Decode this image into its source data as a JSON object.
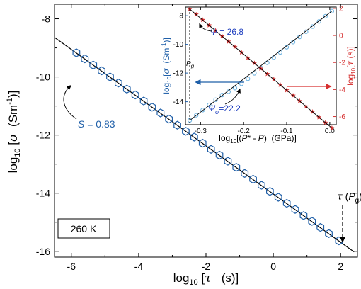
{
  "chart_data": [
    {
      "type": "scatter",
      "xlabel_pre": "log",
      "xlabel_sub": "10",
      "xlabel_post": " [",
      "xlabel_var": "τ",
      "xlabel_unit": "   (s)]",
      "ylabel_pre": "log",
      "ylabel_sub": "10",
      "ylabel_post": " [",
      "ylabel_var": "σ",
      "ylabel_unit": "  (Sm",
      "ylabel_sup": "-1",
      "ylabel_end": ")]",
      "xlim": [
        -6.5,
        2.5
      ],
      "ylim": [
        -16.2,
        -7.5
      ],
      "xticks": [
        "-6",
        "-4",
        "-2",
        "0",
        "2"
      ],
      "xtick_values": [
        -6,
        -4,
        -2,
        0,
        2
      ],
      "yticks": [
        "-8",
        "-10",
        "-12",
        "-14",
        "-16"
      ],
      "ytick_values": [
        -8,
        -10,
        -12,
        -14,
        -16
      ],
      "series": [
        {
          "marker": "hexagon-open",
          "color": "#1f5fa8",
          "x": [
            -5.85,
            -5.6,
            -5.35,
            -5.1,
            -4.85,
            -4.6,
            -4.35,
            -4.1,
            -3.85,
            -3.6,
            -3.35,
            -3.1,
            -2.85,
            -2.6,
            -2.35,
            -2.1,
            -1.85,
            -1.6,
            -1.35,
            -1.1,
            -0.85,
            -0.6,
            -0.35,
            -0.1,
            0.15,
            0.4,
            0.65,
            0.9,
            1.15,
            1.4,
            1.65,
            1.95
          ],
          "y": [
            -9.17,
            -9.38,
            -9.59,
            -9.79,
            -10.0,
            -10.21,
            -10.42,
            -10.62,
            -10.83,
            -11.04,
            -11.24,
            -11.45,
            -11.66,
            -11.87,
            -12.07,
            -12.28,
            -12.49,
            -12.69,
            -12.9,
            -13.11,
            -13.32,
            -13.52,
            -13.73,
            -13.94,
            -14.14,
            -14.35,
            -14.56,
            -14.77,
            -14.97,
            -15.18,
            -15.39,
            -15.64
          ]
        }
      ],
      "fit_line": {
        "x": [
          -6.5,
          2.4
        ],
        "y": [
          -8.64,
          -16.02
        ],
        "color": "#000000"
      },
      "annotations": {
        "slope_var": "S",
        "slope_val": " = 0.83",
        "temp_label": "260 K",
        "pg_tau": "τ",
        "pg_open": " (",
        "pg_var": "P",
        "pg_sub": "g",
        "pg_close": ")"
      }
    },
    {
      "type": "scatter",
      "xlabel_pre": "log",
      "xlabel_sub": "10",
      "xlabel_mid": "[(",
      "xlabel_var1": "P",
      "xlabel_star": "*",
      "xlabel_dash": " - ",
      "xlabel_var2": "P",
      "xlabel_end": ")  (GPa)]",
      "ylabel_left_pre": "log",
      "ylabel_left_sub": "10",
      "ylabel_left_post": "[",
      "ylabel_left_var": "σ",
      "ylabel_left_unit": "  (Sm",
      "ylabel_left_sup": "-1",
      "ylabel_left_end": ")]",
      "ylabel_right_pre": "log",
      "ylabel_right_sub": "10",
      "ylabel_right_post": "[",
      "ylabel_right_var": "τ",
      "ylabel_right_end": " (s)]",
      "xlim": [
        -0.335,
        0.015
      ],
      "ylim_left": [
        -15.6,
        -7.4
      ],
      "ylim_right": [
        -6.6,
        2.1
      ],
      "xticks": [
        "-0.3",
        "-0.2",
        "-0.1",
        "0.0"
      ],
      "xtick_values": [
        -0.3,
        -0.2,
        -0.1,
        0.0
      ],
      "yticks_left": [
        "-8",
        "-10",
        "-12",
        "-14"
      ],
      "ytick_left_values": [
        -8,
        -10,
        -12,
        -14
      ],
      "yticks_right": [
        "2",
        "0",
        "-2",
        "-4",
        "-6"
      ],
      "ytick_right_values": [
        2,
        0,
        -2,
        -4,
        -6
      ],
      "series": [
        {
          "axis": "left",
          "marker": "circle-open",
          "color": "#6fb3e0",
          "x": [
            -0.325,
            -0.31,
            -0.295,
            -0.28,
            -0.265,
            -0.25,
            -0.235,
            -0.22,
            -0.205,
            -0.19,
            -0.175,
            -0.16,
            -0.145,
            -0.13,
            -0.115,
            -0.1,
            -0.085,
            -0.07,
            -0.055,
            -0.04,
            -0.025,
            -0.01,
            0.005
          ],
          "y": [
            -15.3,
            -14.94,
            -14.58,
            -14.22,
            -13.86,
            -13.53,
            -13.3,
            -13.05,
            -12.75,
            -12.4,
            -12.02,
            -11.64,
            -11.28,
            -10.92,
            -10.56,
            -10.2,
            -9.84,
            -9.48,
            -9.12,
            -8.76,
            -8.4,
            -8.04,
            -7.68
          ]
        },
        {
          "axis": "right",
          "marker": "star",
          "color": "#d62f2f",
          "x": [
            -0.325,
            -0.31,
            -0.295,
            -0.28,
            -0.265,
            -0.25,
            -0.235,
            -0.22,
            -0.205,
            -0.19,
            -0.175,
            -0.16,
            -0.145,
            -0.13,
            -0.115,
            -0.1,
            -0.085,
            -0.07,
            -0.055,
            -0.04,
            -0.025,
            -0.01,
            0.005
          ],
          "y": [
            1.95,
            1.55,
            1.15,
            0.75,
            0.35,
            -0.05,
            -0.45,
            -0.85,
            -1.25,
            -1.65,
            -2.05,
            -2.45,
            -2.85,
            -3.25,
            -3.65,
            -4.05,
            -4.45,
            -4.85,
            -5.25,
            -5.65,
            -6.05,
            -6.45,
            -6.85
          ]
        }
      ],
      "annotations": {
        "psi_var": "Ψ",
        "psi_val": " = 26.8",
        "psi_sigma_var": "Ψ",
        "psi_sigma_sub": "σ",
        "psi_sigma_val": "=22.2",
        "pg_var": "P",
        "pg_sub": "g"
      }
    }
  ]
}
